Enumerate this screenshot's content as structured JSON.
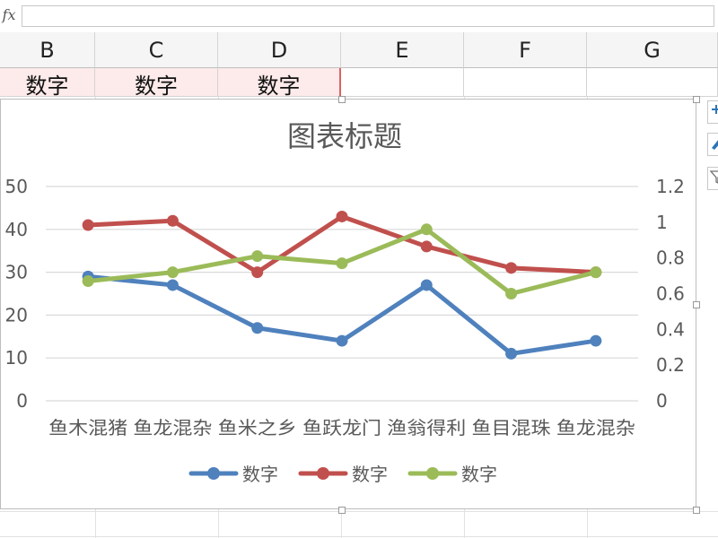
{
  "formula_bar": {
    "fx_label": "fx"
  },
  "columns": [
    "B",
    "C",
    "D",
    "E",
    "F",
    "G"
  ],
  "row1": [
    "数字",
    "数字",
    "数字"
  ],
  "colors": {
    "series1": "#4f81bd",
    "series2": "#c0504d",
    "series3": "#9bbb59",
    "grid": "#d9d9d9",
    "axis_text": "#595959"
  },
  "chart_data": {
    "type": "line",
    "title": "图表标题",
    "categories": [
      "鱼木混猪",
      "鱼龙混杂",
      "鱼米之乡",
      "鱼跃龙门",
      "渔翁得利",
      "鱼目混珠",
      "鱼龙混杂"
    ],
    "series": [
      {
        "name": "数字",
        "axis": "left",
        "values": [
          29,
          27,
          17,
          14,
          27,
          11,
          14
        ]
      },
      {
        "name": "数字",
        "axis": "left",
        "values": [
          41,
          42,
          30,
          43,
          36,
          31,
          30
        ]
      },
      {
        "name": "数字",
        "axis": "right",
        "values": [
          0.67,
          0.72,
          0.81,
          0.77,
          0.96,
          0.6,
          0.72
        ]
      }
    ],
    "y_left": {
      "min": 0,
      "max": 50,
      "ticks": [
        "0",
        "10",
        "20",
        "30",
        "40",
        "50"
      ]
    },
    "y_right": {
      "min": 0,
      "max": 1.2,
      "ticks": [
        "0",
        "0.2",
        "0.4",
        "0.6",
        "0.8",
        "1",
        "1.2"
      ]
    },
    "grid": true,
    "legend": "bottom"
  }
}
